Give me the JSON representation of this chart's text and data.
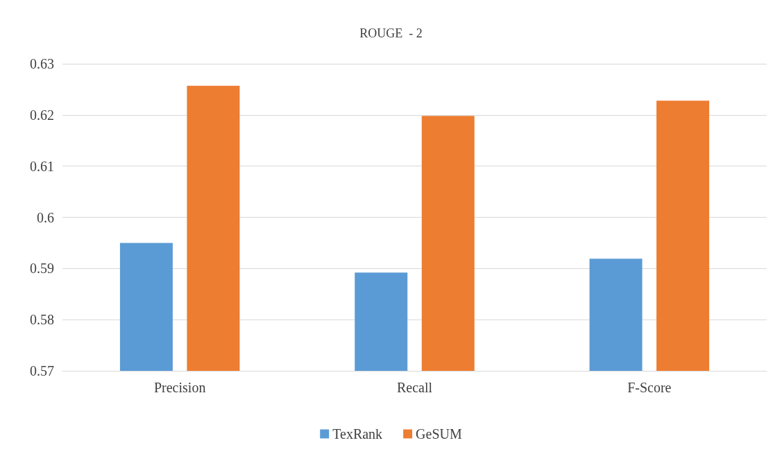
{
  "chart_data": {
    "type": "bar",
    "title": "ROUGE  - 2",
    "categories": [
      "Precision",
      "Recall",
      "F-Score"
    ],
    "series": [
      {
        "name": "TexRank",
        "color": "#5b9bd5",
        "values": [
          0.595,
          0.5892,
          0.5919
        ]
      },
      {
        "name": "GeSUM",
        "color": "#ed7d31",
        "values": [
          0.6257,
          0.6198,
          0.6228
        ]
      }
    ],
    "ylim": [
      0.57,
      0.63
    ],
    "yticks": [
      0.57,
      0.58,
      0.59,
      0.6,
      0.61,
      0.62,
      0.63
    ],
    "grid": "y",
    "legend": "bottom"
  }
}
